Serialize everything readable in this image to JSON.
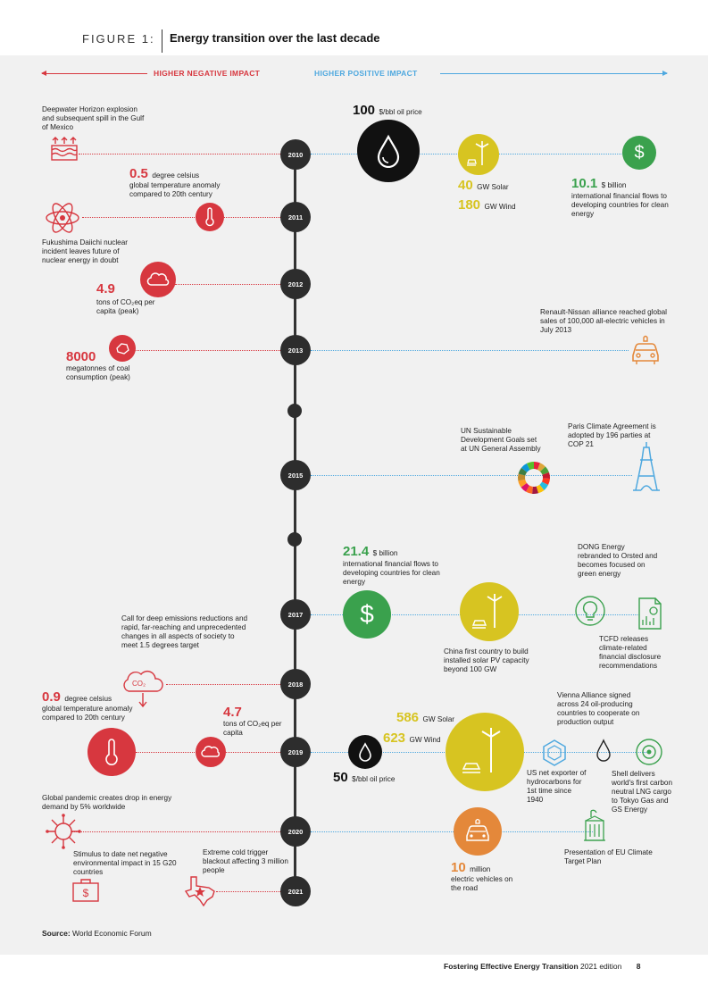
{
  "header": {
    "figure_label": "FIGURE 1:",
    "title": "Energy transition over the last decade"
  },
  "axis": {
    "negative": "HIGHER NEGATIVE IMPACT",
    "positive": "HIGHER POSITIVE IMPACT"
  },
  "years": {
    "y2010": "2010",
    "y2011": "2011",
    "y2012": "2012",
    "y2013": "2013",
    "y2015": "2015",
    "y2017": "2017",
    "y2018": "2018",
    "y2019": "2019",
    "y2020": "2020",
    "y2021": "2021"
  },
  "events": {
    "deepwater": "Deepwater Horizon explosion and subsequent spill in the Gulf of Mexico",
    "oil2010_value": "100",
    "oil2010_unit": "$/bbl oil price",
    "solar2010_value": "40",
    "solar2010_unit": "GW Solar",
    "wind2010_value": "180",
    "wind2010_unit": "GW Wind",
    "fin2010_value": "10.1",
    "fin2010_unit": "$ billion",
    "fin2010_desc": "international financial flows to developing countries for clean energy",
    "temp2011_value": "0.5",
    "temp2011_unit": "degree celsius",
    "temp2011_desc": "global temperature anomaly compared to 20th century",
    "fukushima": "Fukushima Daiichi nuclear incident leaves future of nuclear energy in doubt",
    "co2_2012_value": "4.9",
    "co2_2012_desc": "tons of CO₂eq per capita (peak)",
    "coal_value": "8000",
    "coal_desc": "megatonnes of coal consumption (peak)",
    "renault": "Renault-Nissan alliance reached global sales of 100,000 all-electric vehicles in July 2013",
    "sdg": "UN Sustainable Development Goals set at UN General Assembly",
    "paris": "Paris Climate Agreement is adopted by 196 parties at COP 21",
    "fin2017_value": "21.4",
    "fin2017_unit": "$ billion",
    "fin2017_desc": "international financial flows to developing countries for clean energy",
    "dong": "DONG Energy rebranded to Orsted and becomes focused on green energy",
    "china": "China first country to build installed solar PV capacity beyond 100 GW",
    "tcfd": "TCFD releases climate-related financial disclosure recommendations",
    "ipcc": "Call for deep emissions reductions and rapid, far-reaching and unprecedented changes in all aspects of society to meet 1.5 degrees target",
    "co2_label": "CO₂",
    "temp2019_value": "0.9",
    "temp2019_unit": "degree celsius",
    "temp2019_desc": "global temperature anomaly compared to 20th century",
    "co2_2019_value": "4.7",
    "co2_2019_desc": "tons of CO₂eq per capita",
    "solar2019_value": "586",
    "solar2019_unit": "GW Solar",
    "wind2019_value": "623",
    "wind2019_unit": "GW Wind",
    "oil2019_value": "50",
    "oil2019_unit": "$/bbl oil price",
    "vienna": "Vienna Alliance signed across 24 oil-producing countries to cooperate on production output",
    "us_exporter": "US net exporter of hydrocarbons for 1st time since 1940",
    "shell": "Shell delivers world's first carbon neutral LNG cargo to Tokyo Gas and GS Energy",
    "pandemic": "Global pandemic creates drop in energy demand by 5% worldwide",
    "stimulus": "Stimulus to date net negative environmental impact in 15 G20 countries",
    "cold": "Extreme cold trigger blackout affecting 3 million people",
    "ev_value": "10",
    "ev_unit": "million",
    "ev_desc": "electric vehicles on the road",
    "eu_plan": "Presentation of EU Climate Target Plan"
  },
  "footer": {
    "source_label": "Source:",
    "source": "World Economic Forum",
    "pub": "Fostering Effective Energy Transition",
    "edition": "2021 edition",
    "page": "8"
  },
  "colors": {
    "negative": "#d7373f",
    "positive": "#4ea8df",
    "green": "#3aa14d",
    "yellow": "#d7c421",
    "orange": "#e4883a"
  }
}
